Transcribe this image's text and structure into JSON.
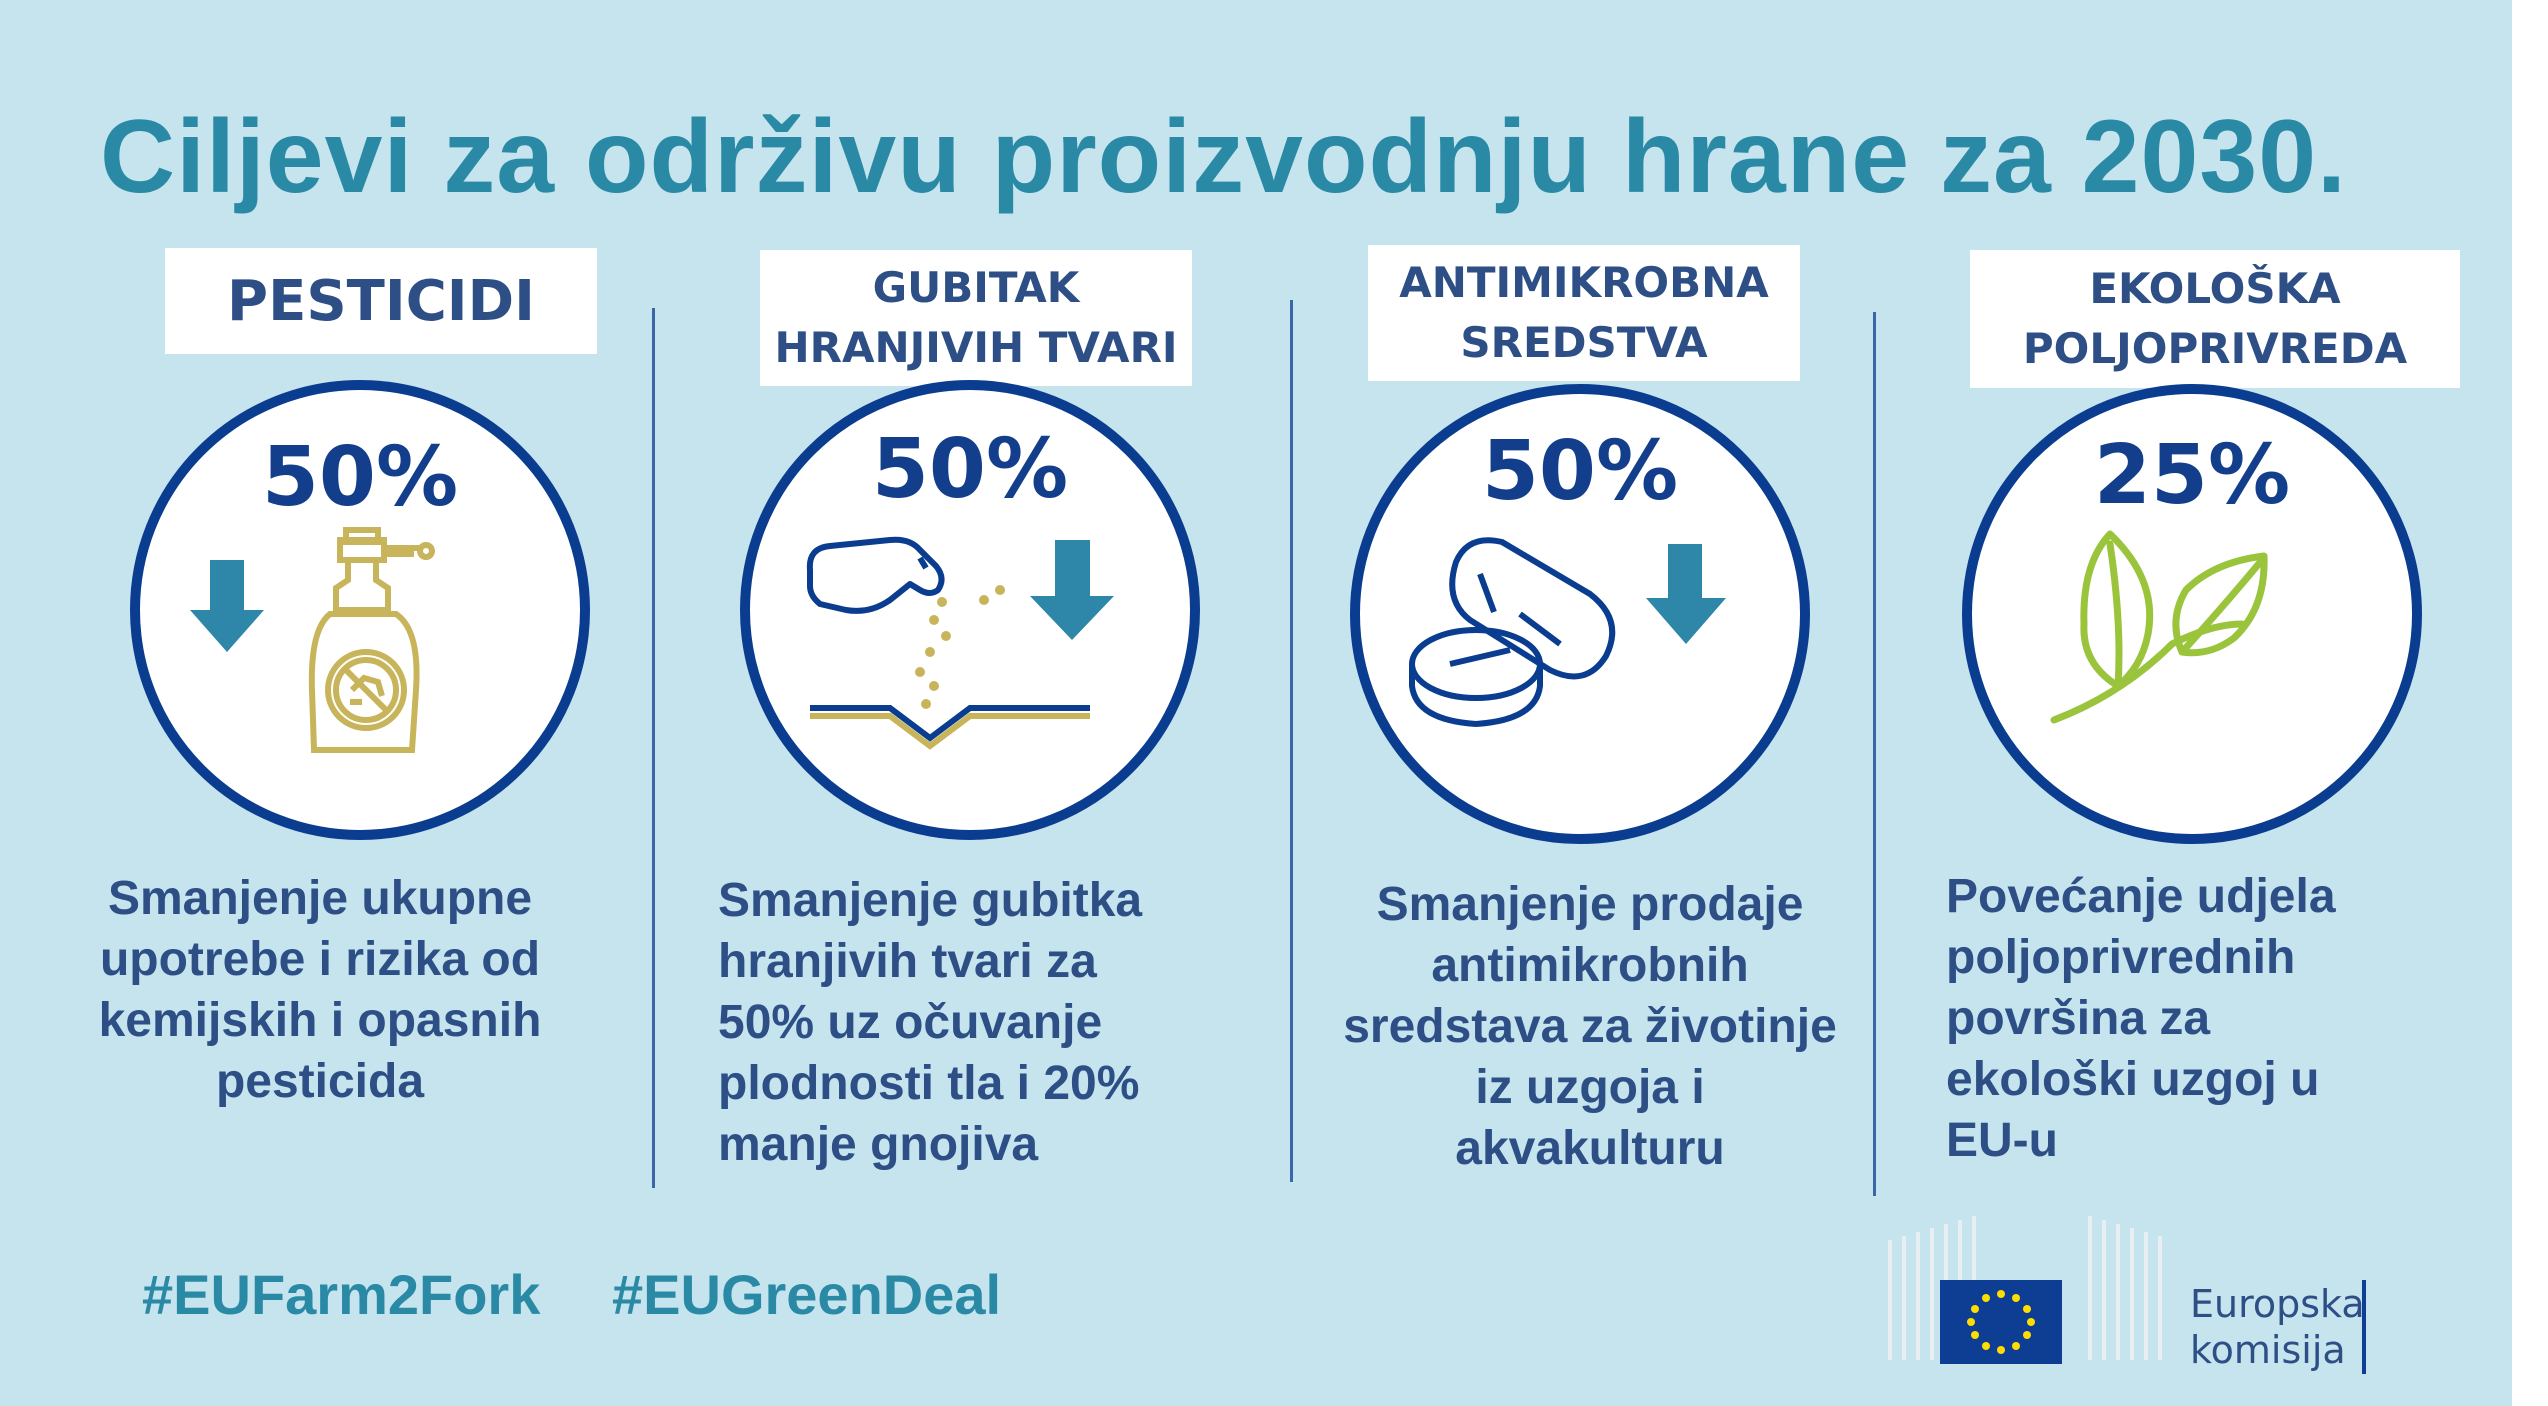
{
  "title": "Ciljevi za održivu proizvodnju hrane za 2030.",
  "targets": [
    {
      "label": "PESTICIDI",
      "percent": "50%",
      "icon": "pesticide-sprayer-icon",
      "description": "Smanjenje ukupne\nupotrebe i rizika od\nkemijskih i opasnih\npesticida"
    },
    {
      "label": "GUBITAK\nHRANJIVIH TVARI",
      "percent": "50%",
      "icon": "fertilizer-hand-icon",
      "description": "Smanjenje gubitka\nhranjivih tvari za\n50% uz očuvanje\nplodnosti tla i 20%\nmanje gnojiva"
    },
    {
      "label": "ANTIMIKROBNA\nSREDSTVA",
      "percent": "50%",
      "icon": "pills-icon",
      "description": "Smanjenje prodaje\nantimikrobnih\nsredstava za životinje\niz uzgoja i\nakvakulturu"
    },
    {
      "label": "EKOLOŠKA\nPOLJOPRIVREDA",
      "percent": "25%",
      "icon": "leaves-icon",
      "description": "Povećanje udjela\npoljoprivrednih\npovršina za\nekološki uzgoj u\nEU-u"
    }
  ],
  "hashtags": [
    "#EUFarm2Fork",
    "#EUGreenDeal"
  ],
  "logo": {
    "line1": "Europska",
    "line2": "komisija"
  },
  "colors": {
    "background": "#c6e4ee",
    "title": "#2a8aa6",
    "navy": "#0a3d8f",
    "text": "#2d4f86",
    "arrow": "#2e86a8",
    "gold": "#c8b45a",
    "leaf": "#9ac43c"
  }
}
